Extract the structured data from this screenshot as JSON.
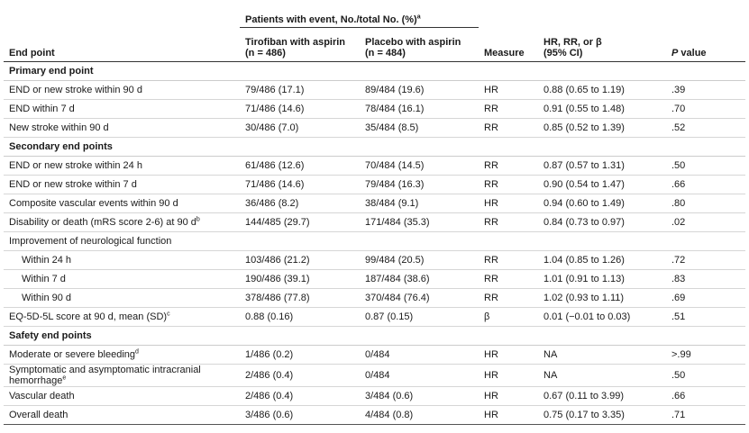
{
  "table": {
    "group_header": {
      "text": "Patients with event, No./total No. (%)",
      "note": "a"
    },
    "columns": [
      [
        "End point"
      ],
      [
        "Tirofiban with aspirin",
        "(n = 486)"
      ],
      [
        "Placebo with aspirin",
        "(n = 484)"
      ],
      [
        "Measure"
      ],
      [
        "HR, RR, or β",
        "(95% CI)"
      ],
      [
        "P value"
      ]
    ],
    "sections": [
      {
        "title": "Primary end point",
        "rows": [
          {
            "cells": [
              "END or new stroke within 90 d",
              "79/486 (17.1)",
              "89/484 (19.6)",
              "HR",
              "0.88 (0.65 to 1.19)",
              ".39"
            ]
          },
          {
            "cells": [
              "END within 7 d",
              "71/486 (14.6)",
              "78/484 (16.1)",
              "RR",
              "0.91 (0.55 to 1.48)",
              ".70"
            ]
          },
          {
            "cells": [
              "New stroke within 90 d",
              "30/486 (7.0)",
              "35/484 (8.5)",
              "RR",
              "0.85 (0.52 to 1.39)",
              ".52"
            ]
          }
        ]
      },
      {
        "title": "Secondary end points",
        "rows": [
          {
            "cells": [
              "END or new stroke within 24 h",
              "61/486 (12.6)",
              "70/484 (14.5)",
              "RR",
              "0.87 (0.57 to 1.31)",
              ".50"
            ]
          },
          {
            "cells": [
              "END or new stroke within 7 d",
              "71/486 (14.6)",
              "79/484 (16.3)",
              "RR",
              "0.90 (0.54 to 1.47)",
              ".66"
            ]
          },
          {
            "cells": [
              "Composite vascular events within 90 d",
              "36/486 (8.2)",
              "38/484 (9.1)",
              "HR",
              "0.94 (0.60 to 1.49)",
              ".80"
            ]
          },
          {
            "cells": [
              "Disability or death (mRS score 2-6) at 90 d",
              "144/485 (29.7)",
              "171/484 (35.3)",
              "RR",
              "0.84 (0.73 to 0.97)",
              ".02"
            ],
            "note": "b"
          },
          {
            "cells": [
              "Improvement of neurological function",
              "",
              "",
              "",
              "",
              ""
            ]
          },
          {
            "cells": [
              "Within 24 h",
              "103/486 (21.2)",
              "99/484 (20.5)",
              "RR",
              "1.04 (0.85 to 1.26)",
              ".72"
            ],
            "indent": true
          },
          {
            "cells": [
              "Within 7 d",
              "190/486 (39.1)",
              "187/484 (38.6)",
              "RR",
              "1.01 (0.91 to 1.13)",
              ".83"
            ],
            "indent": true
          },
          {
            "cells": [
              "Within 90 d",
              "378/486 (77.8)",
              "370/484 (76.4)",
              "RR",
              "1.02 (0.93 to 1.11)",
              ".69"
            ],
            "indent": true
          },
          {
            "cells": [
              "EQ-5D-5L score at 90 d, mean (SD)",
              "0.88 (0.16)",
              "0.87 (0.15)",
              "β",
              "0.01 (−0.01 to 0.03)",
              ".51"
            ],
            "note": "c"
          }
        ]
      },
      {
        "title": "Safety end points",
        "rows": [
          {
            "cells": [
              "Moderate or severe bleeding",
              "1/486 (0.2)",
              "0/484",
              "HR",
              "NA",
              ">.99"
            ],
            "note": "d"
          },
          {
            "cells": [
              "Symptomatic and asymptomatic intracranial hemorrhage",
              "2/486 (0.4)",
              "0/484",
              "HR",
              "NA",
              ".50"
            ],
            "note": "e"
          },
          {
            "cells": [
              "Vascular death",
              "2/486 (0.4)",
              "3/484 (0.6)",
              "HR",
              "0.67 (0.11 to 3.99)",
              ".66"
            ]
          },
          {
            "cells": [
              "Overall death",
              "3/486 (0.6)",
              "4/484 (0.8)",
              "HR",
              "0.75 (0.17 to 3.35)",
              ".71"
            ]
          }
        ]
      }
    ]
  }
}
